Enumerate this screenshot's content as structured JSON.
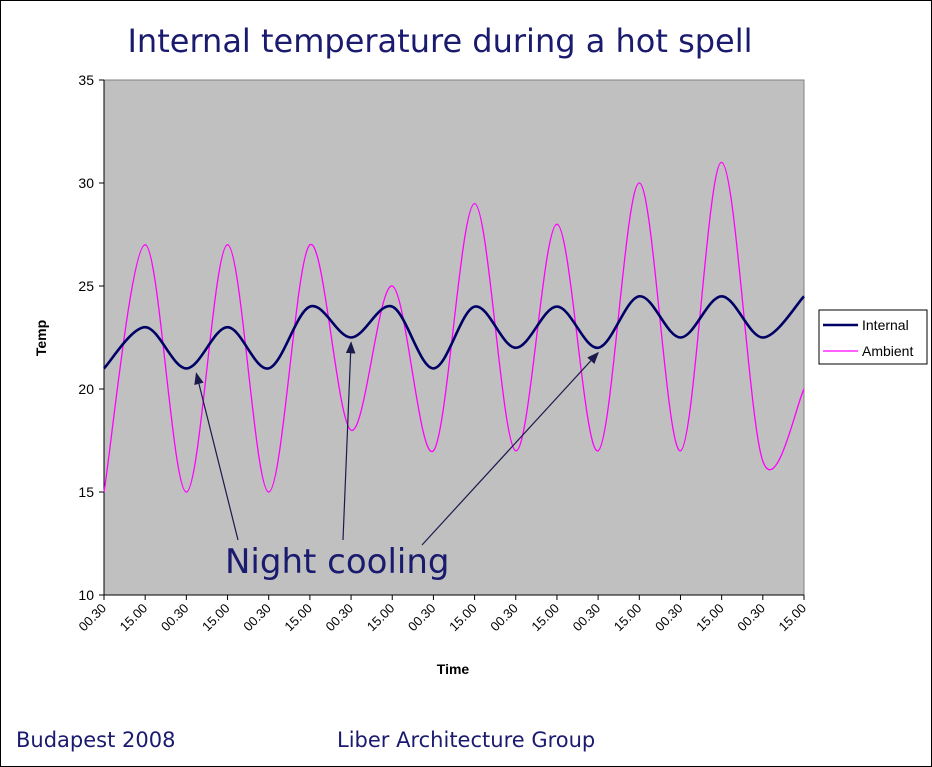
{
  "chart_data": {
    "type": "line",
    "title": "Internal temperature during a hot spell",
    "xlabel": "Time",
    "ylabel": "Temp",
    "ylim": [
      10,
      35
    ],
    "yticks": [
      10,
      15,
      20,
      25,
      30,
      35
    ],
    "categories": [
      "00.30",
      "15.00",
      "00.30",
      "15.00",
      "00.30",
      "15.00",
      "00.30",
      "15.00",
      "00.30",
      "15.00",
      "00.30",
      "15.00",
      "00.30",
      "15.00",
      "00.30",
      "15.00",
      "00.30",
      "15.00"
    ],
    "series": [
      {
        "name": "Internal",
        "color": "#000066",
        "values": [
          21,
          23,
          21,
          23,
          21,
          24,
          22.5,
          24,
          21,
          24,
          22,
          24,
          22,
          24.5,
          22.5,
          24.5,
          22.5,
          24.5
        ]
      },
      {
        "name": "Ambient",
        "color": "#ff00ff",
        "values": [
          15,
          27,
          15,
          27,
          15,
          27,
          18,
          25,
          17,
          29,
          17,
          28,
          17,
          30,
          17,
          31,
          16.5,
          20
        ]
      }
    ],
    "annotation": {
      "text": "Night cooling",
      "targets": [
        2,
        6,
        12
      ]
    },
    "plot_background": "#c0c0c0",
    "grid": false,
    "legend_position": "right"
  },
  "footer": {
    "left": "Budapest 2008",
    "center": "Liber Architecture Group"
  }
}
